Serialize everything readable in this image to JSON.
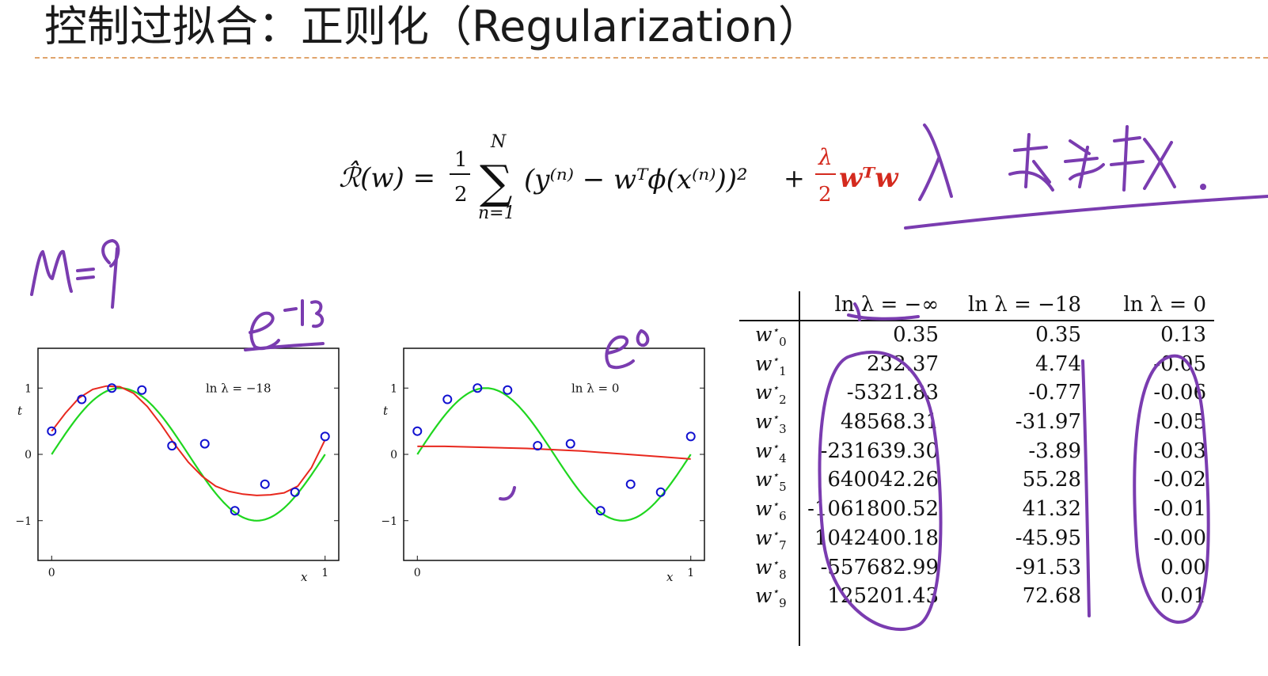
{
  "slide": {
    "title": "控制过拟合：正则化（Regularization）"
  },
  "formula": {
    "lhs": "ℛ̂(w) =",
    "half_num": "1",
    "half_den": "2",
    "sum_top": "N",
    "sum_bottom": "n=1",
    "sum_symbol": "∑",
    "body": "(y⁽ⁿ⁾ − wᵀϕ(x⁽ⁿ⁾))²",
    "plus": "+",
    "reg_num": "λ",
    "reg_den": "2",
    "reg_term": "wᵀw"
  },
  "annotations": {
    "model_order": "M=9",
    "exp_left": "e⁻¹⁸",
    "exp_right": "e⁰"
  },
  "chart_data": [
    {
      "type": "line",
      "annotation": "ln λ = −18",
      "xlabel": "x",
      "ylabel": "t",
      "xlim": [
        -0.05,
        1.05
      ],
      "ylim": [
        -1.6,
        1.6
      ],
      "x_ticks": [
        "0",
        "1"
      ],
      "y_ticks": [
        "−1",
        "0",
        "1"
      ],
      "points": [
        [
          0.0,
          0.35
        ],
        [
          0.11,
          0.83
        ],
        [
          0.22,
          1.0
        ],
        [
          0.33,
          0.97
        ],
        [
          0.44,
          0.13
        ],
        [
          0.56,
          0.16
        ],
        [
          0.67,
          -0.85
        ],
        [
          0.78,
          -0.45
        ],
        [
          0.89,
          -0.57
        ],
        [
          1.0,
          0.27
        ]
      ],
      "true_curve": "sin(2πx)",
      "fit_curve": [
        [
          0.0,
          0.35
        ],
        [
          0.05,
          0.62
        ],
        [
          0.1,
          0.85
        ],
        [
          0.15,
          0.98
        ],
        [
          0.2,
          1.03
        ],
        [
          0.25,
          1.02
        ],
        [
          0.3,
          0.92
        ],
        [
          0.35,
          0.72
        ],
        [
          0.4,
          0.45
        ],
        [
          0.45,
          0.15
        ],
        [
          0.5,
          -0.12
        ],
        [
          0.55,
          -0.33
        ],
        [
          0.6,
          -0.48
        ],
        [
          0.65,
          -0.56
        ],
        [
          0.7,
          -0.6
        ],
        [
          0.75,
          -0.62
        ],
        [
          0.8,
          -0.61
        ],
        [
          0.85,
          -0.58
        ],
        [
          0.9,
          -0.48
        ],
        [
          0.95,
          -0.2
        ],
        [
          1.0,
          0.22
        ]
      ]
    },
    {
      "type": "line",
      "annotation": "ln λ = 0",
      "xlabel": "x",
      "ylabel": "t",
      "xlim": [
        -0.05,
        1.05
      ],
      "ylim": [
        -1.6,
        1.6
      ],
      "x_ticks": [
        "0",
        "1"
      ],
      "y_ticks": [
        "−1",
        "0",
        "1"
      ],
      "points": [
        [
          0.0,
          0.35
        ],
        [
          0.11,
          0.83
        ],
        [
          0.22,
          1.0
        ],
        [
          0.33,
          0.97
        ],
        [
          0.44,
          0.13
        ],
        [
          0.56,
          0.16
        ],
        [
          0.67,
          -0.85
        ],
        [
          0.78,
          -0.45
        ],
        [
          0.89,
          -0.57
        ],
        [
          1.0,
          0.27
        ]
      ],
      "true_curve": "sin(2πx)",
      "fit_curve": [
        [
          0.0,
          0.12
        ],
        [
          0.1,
          0.12
        ],
        [
          0.2,
          0.11
        ],
        [
          0.3,
          0.1
        ],
        [
          0.4,
          0.09
        ],
        [
          0.5,
          0.07
        ],
        [
          0.6,
          0.05
        ],
        [
          0.7,
          0.02
        ],
        [
          0.8,
          -0.01
        ],
        [
          0.9,
          -0.04
        ],
        [
          1.0,
          -0.07
        ]
      ]
    },
    {
      "type": "table",
      "columns": [
        "ln λ = −∞",
        "ln λ = −18",
        "ln λ = 0"
      ],
      "rows": [
        {
          "label": "w",
          "sub": "0",
          "values": [
            "0.35",
            "0.35",
            "0.13"
          ]
        },
        {
          "label": "w",
          "sub": "1",
          "values": [
            "232.37",
            "4.74",
            "-0.05"
          ]
        },
        {
          "label": "w",
          "sub": "2",
          "values": [
            "-5321.83",
            "-0.77",
            "-0.06"
          ]
        },
        {
          "label": "w",
          "sub": "3",
          "values": [
            "48568.31",
            "-31.97",
            "-0.05"
          ]
        },
        {
          "label": "w",
          "sub": "4",
          "values": [
            "-231639.30",
            "-3.89",
            "-0.03"
          ]
        },
        {
          "label": "w",
          "sub": "5",
          "values": [
            "640042.26",
            "55.28",
            "-0.02"
          ]
        },
        {
          "label": "w",
          "sub": "6",
          "values": [
            "-1061800.52",
            "41.32",
            "-0.01"
          ]
        },
        {
          "label": "w",
          "sub": "7",
          "values": [
            "1042400.18",
            "-45.95",
            "-0.00"
          ]
        },
        {
          "label": "w",
          "sub": "8",
          "values": [
            "-557682.99",
            "-91.53",
            "0.00"
          ]
        },
        {
          "label": "w",
          "sub": "9",
          "values": [
            "125201.43",
            "72.68",
            "0.01"
          ]
        }
      ]
    }
  ],
  "colors": {
    "fit_curve": "#e8281e",
    "true_curve": "#1fd61f",
    "points": "#1010d0",
    "ink": "#7a3cb0",
    "rule": "#e0a46c",
    "reg_term": "#d42a1e"
  }
}
